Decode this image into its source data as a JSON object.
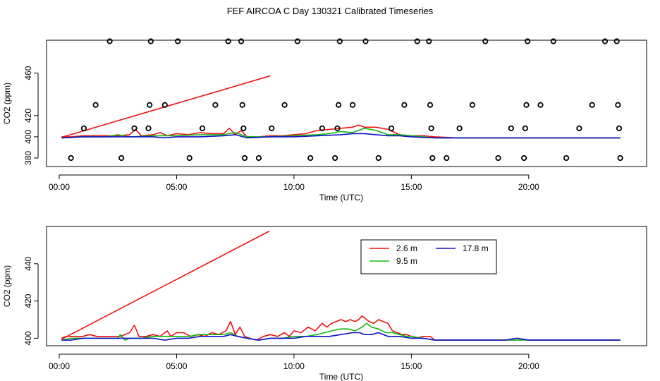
{
  "title": "FEF AIRCOA C  Day 130321  Calibrated Timeseries",
  "colors": {
    "s26": "#ee1111",
    "s95": "#11bb11",
    "s178": "#1111cc",
    "axis": "#000000"
  },
  "chart_data": [
    {
      "type": "scatter+line",
      "name": "top-panel",
      "xlabel": "Time (UTC)",
      "ylabel": "CO2 (ppm)",
      "xlim": [
        0,
        24
      ],
      "ylim": [
        372,
        491
      ],
      "xticks": [
        0,
        5,
        10,
        15,
        20
      ],
      "xtick_labels": [
        "00:00",
        "05:00",
        "10:00",
        "15:00",
        "20:00"
      ],
      "yticks": [
        380,
        400,
        420,
        460
      ],
      "ytick_labels": [
        "380",
        "400",
        "420",
        "460"
      ],
      "ramp": {
        "color": "s26",
        "x": [
          0.1,
          9.0
        ],
        "y": [
          399.5,
          457.5
        ]
      },
      "flag_points": [
        [
          0.5,
          380
        ],
        [
          1.05,
          408
        ],
        [
          1.55,
          430
        ],
        [
          2.15,
          490
        ],
        [
          2.65,
          380
        ],
        [
          3.2,
          408
        ],
        [
          3.85,
          430
        ],
        [
          3.8,
          408
        ],
        [
          3.9,
          490
        ],
        [
          4.5,
          430
        ],
        [
          5.05,
          490
        ],
        [
          5.55,
          380
        ],
        [
          6.1,
          408
        ],
        [
          6.65,
          430
        ],
        [
          7.2,
          490
        ],
        [
          7.75,
          490
        ],
        [
          7.8,
          430
        ],
        [
          7.85,
          408
        ],
        [
          7.9,
          380
        ],
        [
          8.5,
          380
        ],
        [
          9.05,
          408
        ],
        [
          9.6,
          430
        ],
        [
          10.15,
          490
        ],
        [
          10.7,
          380
        ],
        [
          11.2,
          408
        ],
        [
          11.75,
          380
        ],
        [
          11.85,
          408
        ],
        [
          11.9,
          430
        ],
        [
          11.95,
          490
        ],
        [
          12.5,
          430
        ],
        [
          13.05,
          490
        ],
        [
          13.6,
          380
        ],
        [
          14.15,
          408
        ],
        [
          14.7,
          430
        ],
        [
          15.25,
          490
        ],
        [
          15.75,
          490
        ],
        [
          15.8,
          430
        ],
        [
          15.85,
          408
        ],
        [
          15.9,
          380
        ],
        [
          16.5,
          380
        ],
        [
          17.05,
          408
        ],
        [
          17.6,
          430
        ],
        [
          18.15,
          490
        ],
        [
          18.7,
          380
        ],
        [
          19.25,
          408
        ],
        [
          19.8,
          380
        ],
        [
          19.85,
          408
        ],
        [
          19.9,
          430
        ],
        [
          19.95,
          490
        ],
        [
          20.5,
          430
        ],
        [
          21.05,
          490
        ],
        [
          21.6,
          380
        ],
        [
          22.15,
          408
        ],
        [
          22.7,
          430
        ],
        [
          23.25,
          490
        ],
        [
          23.75,
          490
        ],
        [
          23.8,
          430
        ],
        [
          23.85,
          408
        ],
        [
          23.9,
          380
        ]
      ],
      "series": [
        {
          "name": "2.6 m",
          "color": "s26",
          "x": [
            0.1,
            0.5,
            1,
            1.5,
            2,
            2.5,
            3,
            3.25,
            3.5,
            4,
            4.3,
            4.6,
            5,
            5.5,
            6,
            6.5,
            7,
            7.25,
            7.5,
            7.75,
            8,
            8.5,
            9,
            9.5,
            10,
            10.5,
            11,
            11.5,
            12,
            12.5,
            12.75,
            13,
            13.5,
            14,
            14.5,
            15,
            15.5,
            16,
            17,
            18,
            19,
            20,
            21,
            22,
            23,
            23.9
          ],
          "y": [
            400,
            400,
            401,
            401,
            401,
            401,
            402,
            407,
            401,
            402,
            404,
            401,
            403,
            402,
            404,
            403,
            403,
            408,
            402,
            406,
            400,
            400,
            401,
            401,
            402,
            403,
            406,
            407,
            408,
            409,
            411,
            409,
            409,
            407,
            402,
            401,
            401,
            400,
            399,
            399,
            399,
            399,
            399,
            399,
            399,
            399
          ]
        },
        {
          "name": "9.5 m",
          "color": "s95",
          "x": [
            0.1,
            1,
            2,
            2.5,
            3,
            4,
            5,
            6,
            7,
            7.5,
            8,
            9,
            10,
            11,
            11.5,
            12,
            12.5,
            13,
            13.5,
            14,
            14.5,
            15,
            15.5,
            16,
            18,
            20,
            22,
            23.9
          ],
          "y": [
            399,
            400,
            400,
            402,
            400,
            401,
            401,
            402,
            402,
            404,
            400,
            400,
            401,
            402,
            403,
            405,
            404,
            408,
            406,
            402,
            402,
            401,
            400,
            399,
            399,
            399,
            399,
            399
          ]
        },
        {
          "name": "17.8 m",
          "color": "s178",
          "x": [
            0.1,
            1,
            2,
            3,
            4,
            4.5,
            5,
            6,
            7,
            7.5,
            8,
            9,
            10,
            11,
            12,
            12.5,
            13,
            13.5,
            14,
            14.5,
            15,
            16,
            18,
            19.5,
            20,
            22,
            23.9
          ],
          "y": [
            399,
            400,
            400,
            400,
            400,
            399,
            400,
            400,
            401,
            402,
            399,
            400,
            400,
            401,
            402,
            403,
            403,
            402,
            401,
            401,
            400,
            399,
            399,
            399,
            399,
            399,
            399
          ]
        }
      ]
    },
    {
      "type": "line",
      "name": "bottom-panel",
      "xlabel": "Time (UTC)",
      "ylabel": "CO2 (ppm)",
      "xlim": [
        0,
        24
      ],
      "ylim": [
        396,
        460
      ],
      "xticks": [
        0,
        5,
        10,
        15,
        20
      ],
      "xtick_labels": [
        "00:00",
        "05:00",
        "10:00",
        "15:00",
        "20:00"
      ],
      "yticks": [
        400,
        420,
        440
      ],
      "ytick_labels": [
        "400",
        "420",
        "440"
      ],
      "ramp": {
        "color": "s26",
        "x": [
          0.1,
          8.95
        ],
        "y": [
          399.5,
          457.5
        ]
      },
      "series": [
        {
          "name": "2.6 m",
          "color": "s26",
          "x": [
            0.1,
            0.3,
            0.6,
            1.0,
            1.3,
            1.6,
            2.0,
            2.3,
            2.6,
            3.0,
            3.2,
            3.4,
            3.7,
            4.0,
            4.3,
            4.6,
            4.75,
            5.0,
            5.3,
            5.6,
            5.9,
            6.2,
            6.5,
            6.8,
            7.1,
            7.3,
            7.5,
            7.7,
            7.9,
            8.1,
            8.4,
            8.7,
            9.0,
            9.3,
            9.6,
            9.8,
            10.0,
            10.3,
            10.6,
            10.9,
            11.2,
            11.4,
            11.6,
            11.8,
            12.0,
            12.2,
            12.4,
            12.6,
            12.75,
            12.9,
            13.0,
            13.2,
            13.4,
            13.6,
            13.8,
            14.0,
            14.2,
            14.4,
            14.6,
            14.8,
            15.0,
            15.2,
            15.5,
            15.8,
            16.0,
            16.5,
            17.0,
            17.5,
            18.0,
            19.0,
            19.5,
            20.0,
            21.0,
            22.0,
            23.0,
            23.9
          ],
          "y": [
            400,
            401,
            401,
            401,
            402,
            401,
            401,
            401,
            401,
            403,
            407,
            401,
            401,
            402,
            401,
            404,
            401,
            403,
            403,
            401,
            402,
            401,
            403,
            402,
            404,
            409,
            402,
            406,
            401,
            400,
            399,
            401,
            402,
            401,
            403,
            401,
            404,
            403,
            406,
            404,
            408,
            406,
            408,
            409,
            410,
            409,
            410,
            409,
            410,
            412,
            411,
            409,
            408,
            410,
            409,
            408,
            404,
            403,
            402,
            402,
            401,
            400,
            401,
            401,
            399,
            399,
            399,
            399,
            399,
            399,
            400,
            399,
            399,
            399,
            399,
            399
          ]
        },
        {
          "name": "9.5 m",
          "color": "s95",
          "x": [
            0.1,
            0.5,
            1,
            1.5,
            2,
            2.5,
            2.6,
            2.8,
            3,
            3.5,
            4,
            4.5,
            5,
            5.5,
            6,
            6.5,
            7,
            7.3,
            7.6,
            8,
            8.5,
            9,
            9.5,
            10,
            10.5,
            11,
            11.3,
            11.6,
            12,
            12.3,
            12.6,
            12.9,
            13.1,
            13.3,
            13.6,
            13.9,
            14.2,
            14.5,
            14.8,
            15,
            15.5,
            16,
            17,
            18,
            19,
            20,
            21,
            22,
            23,
            23.9
          ],
          "y": [
            399,
            400,
            400,
            400,
            400,
            400,
            402,
            399,
            400,
            400,
            401,
            401,
            401,
            401,
            402,
            402,
            402,
            403,
            401,
            400,
            399,
            400,
            400,
            401,
            401,
            402,
            403,
            404,
            405,
            405,
            404,
            406,
            408,
            406,
            405,
            403,
            403,
            402,
            401,
            401,
            400,
            399,
            399,
            399,
            399,
            399,
            399,
            399,
            399,
            399
          ]
        },
        {
          "name": "17.8 m",
          "color": "s178",
          "x": [
            0.1,
            0.5,
            1,
            1.5,
            2,
            2.5,
            3,
            3.5,
            4,
            4.5,
            5,
            5.5,
            6,
            6.5,
            7,
            7.3,
            7.6,
            8,
            8.5,
            9,
            9.5,
            10,
            10.5,
            11,
            11.5,
            12,
            12.5,
            12.8,
            13,
            13.3,
            13.6,
            14,
            14.5,
            15,
            15.5,
            16,
            17,
            18,
            19,
            19.5,
            20,
            21,
            22,
            23,
            23.9
          ],
          "y": [
            399,
            399,
            400,
            400,
            400,
            400,
            400,
            400,
            400,
            399,
            400,
            400,
            401,
            401,
            401,
            402,
            401,
            400,
            399,
            400,
            400,
            400,
            401,
            401,
            401,
            402,
            403,
            403,
            402,
            402,
            403,
            401,
            401,
            400,
            400,
            399,
            399,
            399,
            399,
            400,
            399,
            399,
            399,
            399,
            399
          ]
        }
      ],
      "legend": {
        "placement": "top-center",
        "entries": [
          {
            "label": "2.6 m",
            "color": "s26"
          },
          {
            "label": "17.8 m",
            "color": "s178"
          },
          {
            "label": "9.5 m",
            "color": "s95"
          }
        ]
      }
    }
  ]
}
